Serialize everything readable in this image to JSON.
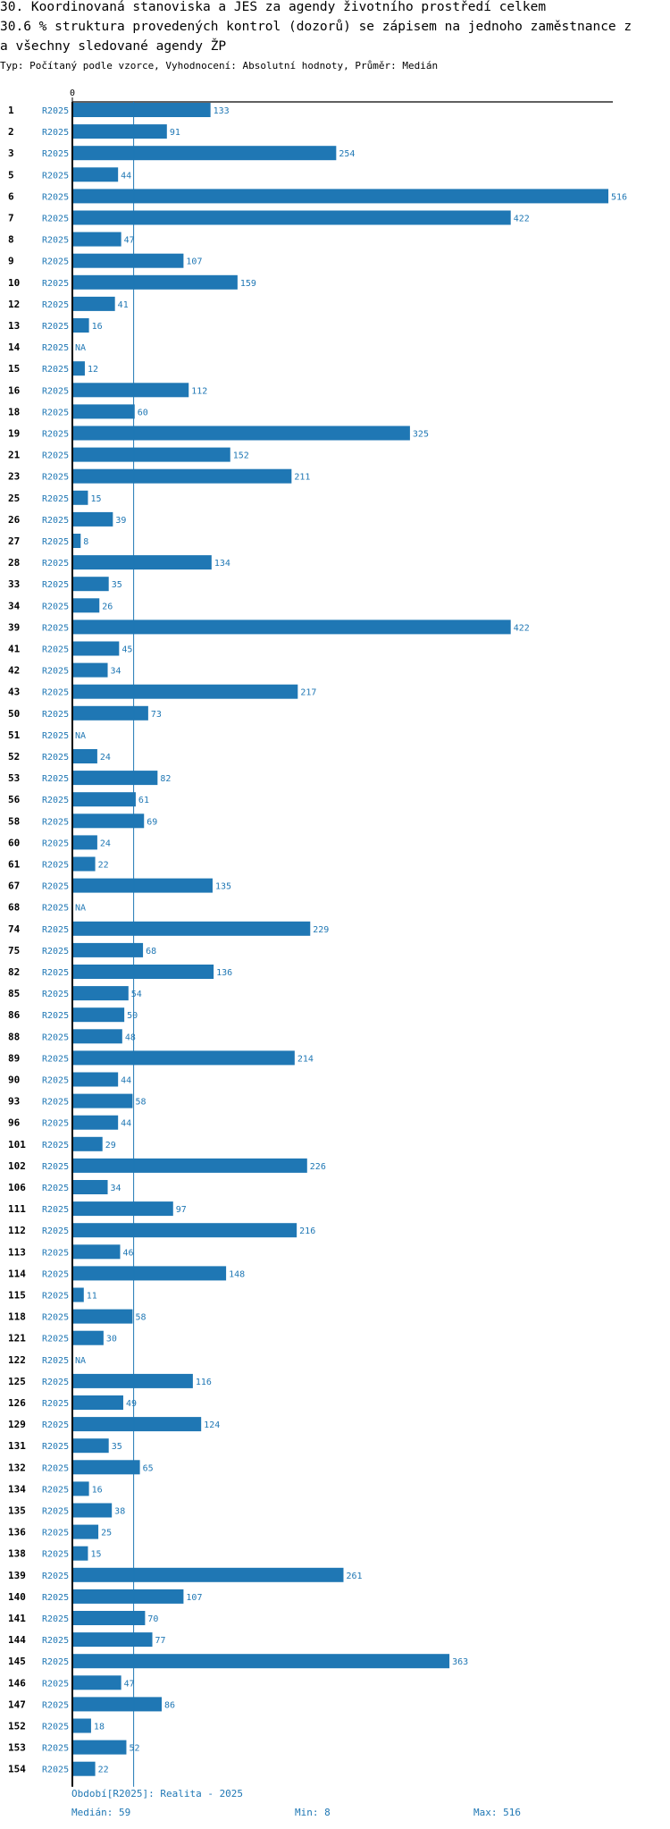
{
  "title_line1": "30. Koordinovaná stanoviska a JES za agendy životního prostředí celkem",
  "title_line2": "30.6 % struktura provedených kontrol (dozorů) se zápisem na jednoho zaměstnance z",
  "title_line3": "a všechny sledované agendy ŽP",
  "subtitle": "Typ: Počítaný podle vzorce, Vyhodnocení: Absolutní hodnoty, Průměr: Medián",
  "footer": {
    "period": "Období[R2025]: Realita - 2025",
    "median": "Medián: 59",
    "min": "Min: 8",
    "max": "Max: 516"
  },
  "colors": {
    "bar": "#1f77b4",
    "label": "#1f77b4",
    "axis": "#000000"
  },
  "chart_data": {
    "type": "bar",
    "orientation": "horizontal",
    "series_label": "R2025",
    "median": 59,
    "x_axis_start_label": "0",
    "xlim": [
      0,
      516
    ],
    "grid": false,
    "categories": [
      "1",
      "2",
      "3",
      "5",
      "6",
      "7",
      "8",
      "9",
      "10",
      "12",
      "13",
      "14",
      "15",
      "16",
      "18",
      "19",
      "21",
      "23",
      "25",
      "26",
      "27",
      "28",
      "33",
      "34",
      "39",
      "41",
      "42",
      "43",
      "50",
      "51",
      "52",
      "53",
      "56",
      "58",
      "60",
      "61",
      "67",
      "68",
      "74",
      "75",
      "82",
      "85",
      "86",
      "88",
      "89",
      "90",
      "93",
      "96",
      "101",
      "102",
      "106",
      "111",
      "112",
      "113",
      "114",
      "115",
      "118",
      "121",
      "122",
      "125",
      "126",
      "129",
      "131",
      "132",
      "134",
      "135",
      "136",
      "138",
      "139",
      "140",
      "141",
      "144",
      "145",
      "146",
      "147",
      "152",
      "153",
      "154"
    ],
    "values": [
      133,
      91,
      254,
      44,
      516,
      422,
      47,
      107,
      159,
      41,
      16,
      null,
      12,
      112,
      60,
      325,
      152,
      211,
      15,
      39,
      8,
      134,
      35,
      26,
      422,
      45,
      34,
      217,
      73,
      null,
      24,
      82,
      61,
      69,
      24,
      22,
      135,
      null,
      229,
      68,
      136,
      54,
      50,
      48,
      214,
      44,
      58,
      44,
      29,
      226,
      34,
      97,
      216,
      46,
      148,
      11,
      58,
      30,
      null,
      116,
      49,
      124,
      35,
      65,
      16,
      38,
      25,
      15,
      261,
      107,
      70,
      77,
      363,
      47,
      86,
      18,
      52,
      22
    ],
    "na_label": "NA"
  }
}
